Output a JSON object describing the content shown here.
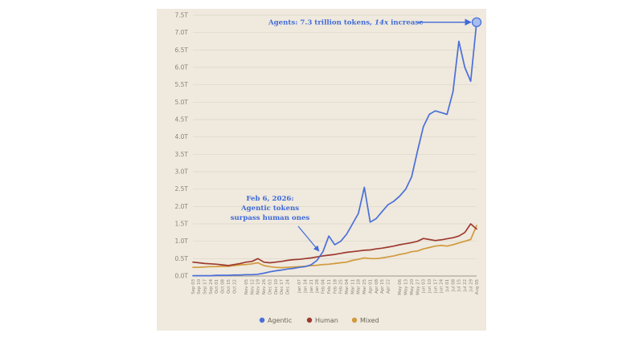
{
  "chart_data": {
    "type": "line",
    "title": "",
    "xlabel": "",
    "ylabel": "",
    "y_unit": "trillion tokens",
    "ylim": [
      0,
      7.5
    ],
    "y_ticks": [
      "0.0T",
      "0.5T",
      "1.0T",
      "1.5T",
      "2.0T",
      "2.5T",
      "3.0T",
      "3.5T",
      "4.0T",
      "4.5T",
      "5.0T",
      "5.5T",
      "6.0T",
      "6.5T",
      "7.0T",
      "7.5T"
    ],
    "x_ticks": [
      "Sep 03",
      "Sep 10",
      "Sep 17",
      "Sep 24",
      "Oct 01",
      "Oct 08",
      "Oct 15",
      "Oct 22",
      "Oct 29",
      "Nov 05",
      "Nov 12",
      "Nov 19",
      "Nov 26",
      "Dec 03",
      "Dec 10",
      "Dec 17",
      "Dec 24",
      "Dec 31",
      "Jan 07",
      "Jan 14",
      "Jan 21",
      "Jan 28",
      "Feb 04",
      "Feb 11",
      "Feb 18",
      "Feb 25",
      "Mar 04",
      "Mar 11",
      "Mar 18",
      "Mar 25",
      "Apr 01",
      "Apr 08",
      "Apr 15",
      "Apr 22",
      "Apr 29",
      "May 06",
      "May 13",
      "May 20",
      "May 27",
      "Jun 03",
      "Jun 10",
      "Jun 17",
      "Jun 24",
      "Jul 01",
      "Jul 08",
      "Jul 15",
      "Jul 22",
      "Jul 29",
      "Aug 05"
    ],
    "x_tick_labels": [
      "Sep 03",
      "Sep 10",
      "Sep 17",
      "Sep 24",
      "Oct 01",
      "Oct 08",
      "Oct 15",
      "Oct 22",
      "Nov 05",
      "Nov 12",
      "Nov 19",
      "Nov 26",
      "Dec 03",
      "Dec 10",
      "Dec 17",
      "Dec 24",
      "Jan 07",
      "Jan 14",
      "Jan 21",
      "Jan 28",
      "Feb 04",
      "Feb 11",
      "Feb 18",
      "Feb 25",
      "Mar 04",
      "Mar 11",
      "Mar 18",
      "Mar 25",
      "Apr 01",
      "Apr 08",
      "Apr 15",
      "Apr 22",
      "May 06",
      "May 13",
      "May 20",
      "May 27",
      "Jun 03",
      "Jun 10",
      "Jun 17",
      "Jun 24",
      "Jul 01",
      "Jul 08",
      "Jul 15",
      "Jul 22",
      "Jul 29",
      "Aug 05"
    ],
    "grid": "horizontal",
    "legend_position": "bottom",
    "series": [
      {
        "name": "Agentic",
        "color": "#4a6fd8",
        "values": [
          0.01,
          0.01,
          0.01,
          0.01,
          0.02,
          0.02,
          0.02,
          0.03,
          0.03,
          0.04,
          0.04,
          0.05,
          0.08,
          0.12,
          0.15,
          0.17,
          0.2,
          0.22,
          0.25,
          0.27,
          0.32,
          0.45,
          0.7,
          1.15,
          0.9,
          1.0,
          1.2,
          1.5,
          1.8,
          2.55,
          1.55,
          1.65,
          1.85,
          2.05,
          2.15,
          2.3,
          2.5,
          2.85,
          3.6,
          4.3,
          4.65,
          4.75,
          4.7,
          4.65,
          5.3,
          6.75,
          6.0,
          5.6,
          7.3
        ]
      },
      {
        "name": "Human",
        "color": "#9e3a2e",
        "values": [
          0.4,
          0.38,
          0.36,
          0.35,
          0.34,
          0.32,
          0.3,
          0.33,
          0.36,
          0.4,
          0.42,
          0.5,
          0.4,
          0.38,
          0.4,
          0.42,
          0.45,
          0.47,
          0.48,
          0.5,
          0.52,
          0.55,
          0.58,
          0.6,
          0.62,
          0.65,
          0.68,
          0.7,
          0.72,
          0.74,
          0.75,
          0.78,
          0.8,
          0.83,
          0.86,
          0.9,
          0.93,
          0.96,
          1.0,
          1.08,
          1.05,
          1.02,
          1.04,
          1.07,
          1.1,
          1.15,
          1.25,
          1.5,
          1.35
        ]
      },
      {
        "name": "Mixed",
        "color": "#d19a3c",
        "values": [
          0.25,
          0.25,
          0.26,
          0.27,
          0.27,
          0.28,
          0.28,
          0.3,
          0.32,
          0.33,
          0.35,
          0.38,
          0.3,
          0.27,
          0.25,
          0.24,
          0.25,
          0.26,
          0.27,
          0.28,
          0.3,
          0.31,
          0.33,
          0.34,
          0.36,
          0.38,
          0.4,
          0.45,
          0.48,
          0.52,
          0.5,
          0.5,
          0.52,
          0.55,
          0.58,
          0.62,
          0.65,
          0.7,
          0.72,
          0.78,
          0.82,
          0.86,
          0.88,
          0.86,
          0.9,
          0.95,
          1.0,
          1.05,
          1.45
        ]
      }
    ],
    "annotations": [
      {
        "text_parts": [
          "Agents: 7.3 trillion tokens, ",
          "14x",
          " increase"
        ],
        "target_index": 48,
        "target_value": 7.3
      },
      {
        "lines": [
          "Feb 6, 2026:",
          "Agentic tokens",
          "surpass human ones"
        ],
        "target_index": 22,
        "target_value": 0.6
      }
    ]
  }
}
